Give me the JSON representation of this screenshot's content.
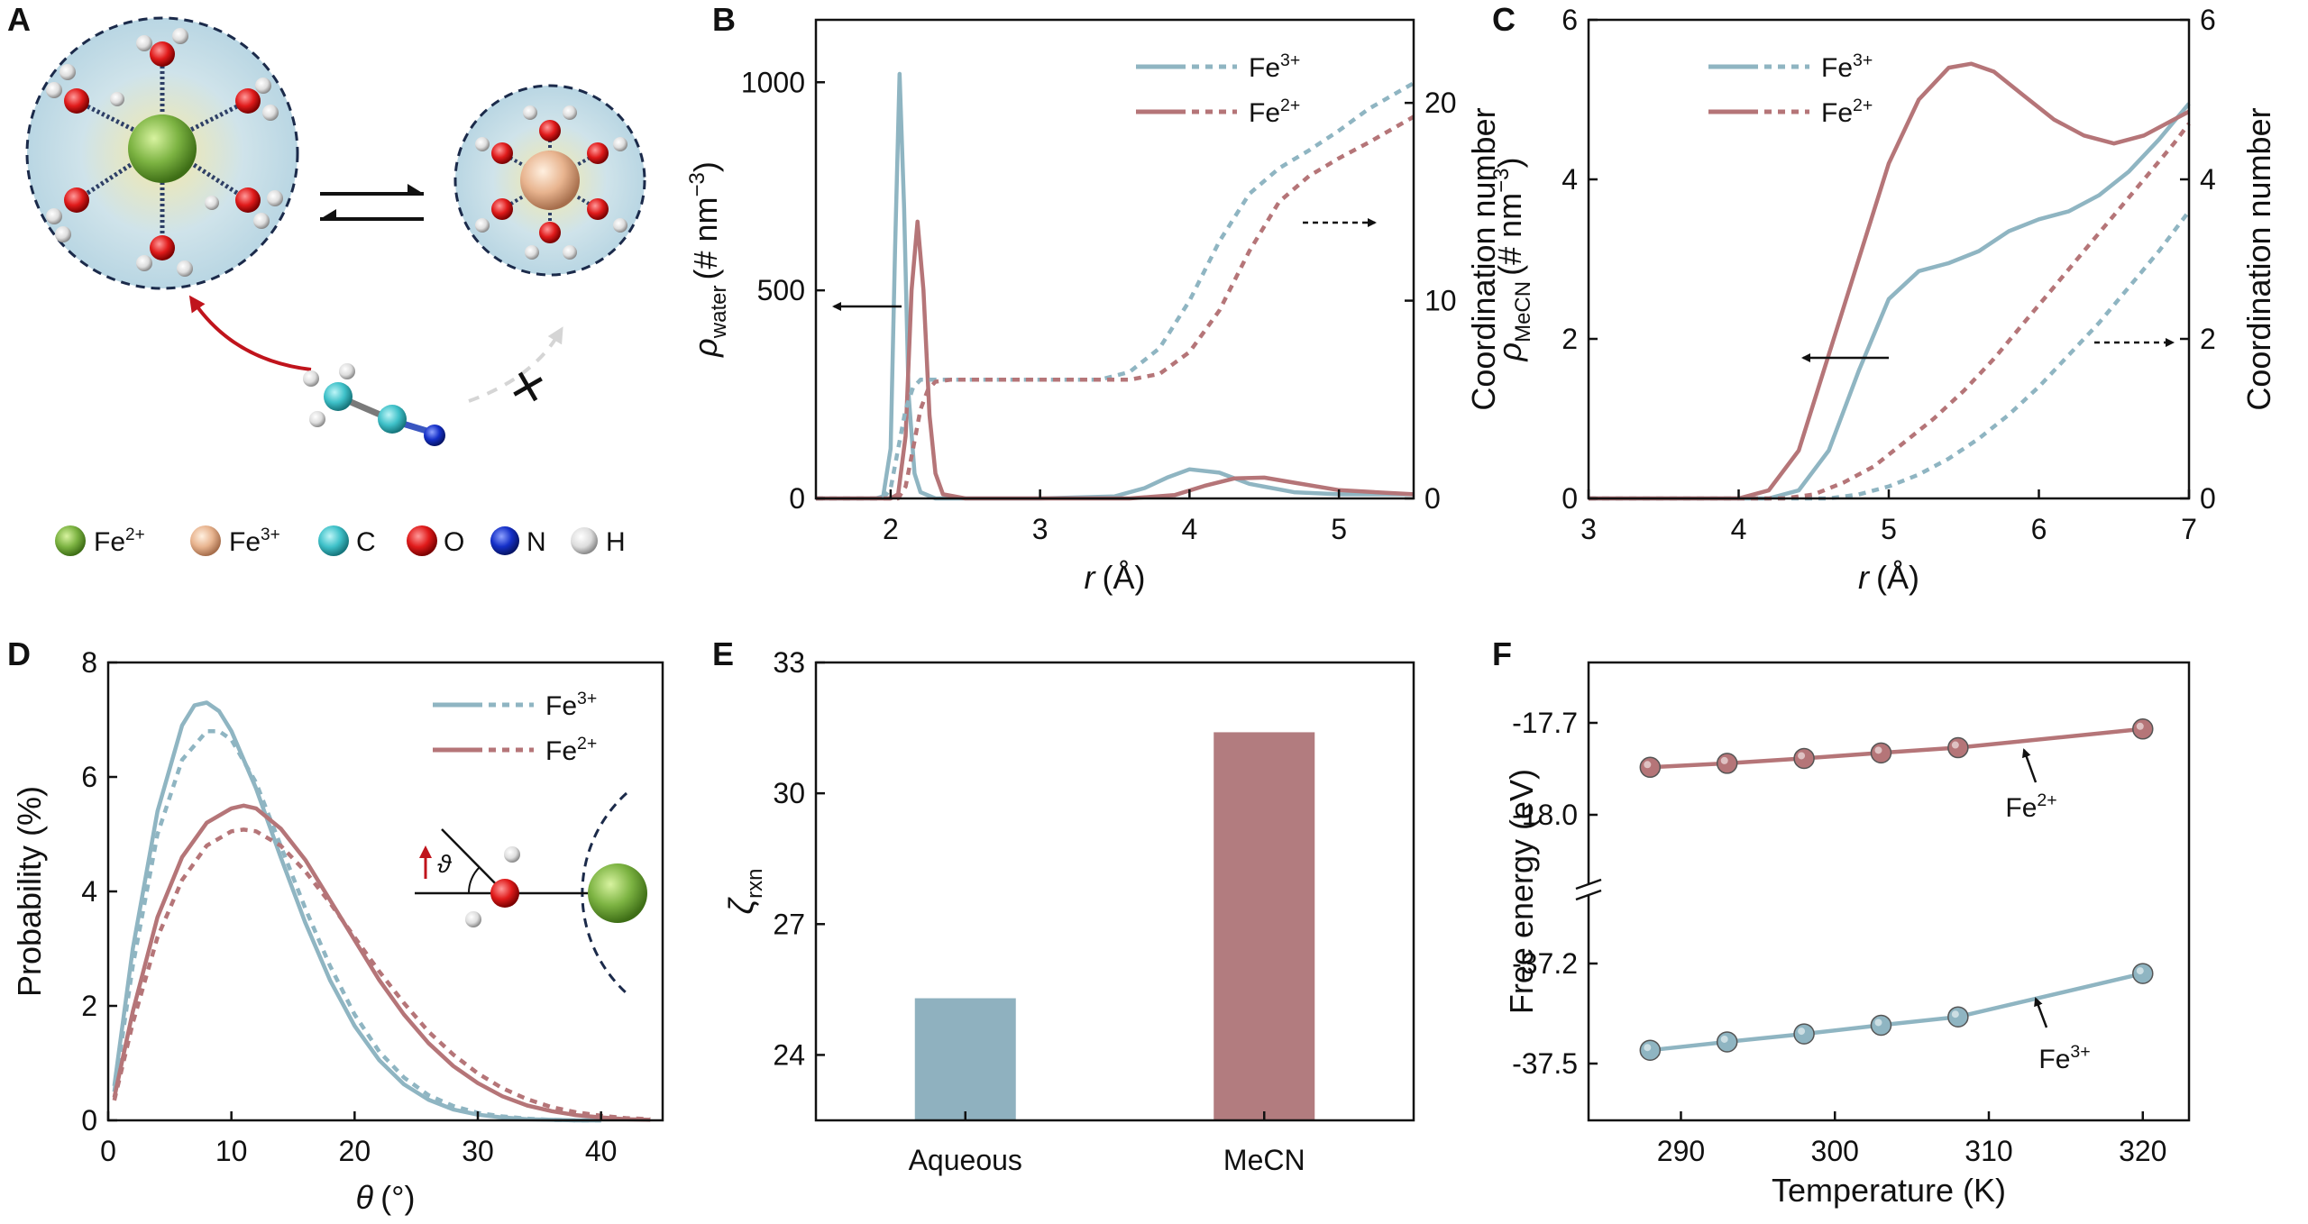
{
  "colors": {
    "blue": "#8FB5C2",
    "red": "#B57578",
    "bar_blue": "#8FB1BF",
    "bar_red": "#B27C7F",
    "dark": "#111111",
    "dashed": "#1b2a4a"
  },
  "panel_letters": {
    "A": "A",
    "B": "B",
    "C": "C",
    "D": "D",
    "E": "E",
    "F": "F"
  },
  "schematic": {
    "legend": [
      {
        "label": "Fe2+",
        "base": "Fe",
        "sup": "2+",
        "color": "#7CB342"
      },
      {
        "label": "Fe3+",
        "base": "Fe",
        "sup": "3+",
        "color": "#E8B48F"
      },
      {
        "label": "C",
        "base": "C",
        "sup": "",
        "color": "#3FC1C9"
      },
      {
        "label": "O",
        "base": "O",
        "sup": "",
        "color": "#E01B1B"
      },
      {
        "label": "N",
        "base": "N",
        "sup": "",
        "color": "#1530C8"
      },
      {
        "label": "H",
        "base": "H",
        "sup": "",
        "color": "#DDDDDD"
      }
    ]
  },
  "chart_data": [
    {
      "id": "B",
      "type": "line",
      "xlabel_var": "r",
      "xlabel_unit": "(Å)",
      "ylabel_left_var": "ρ",
      "ylabel_left_sub": "water",
      "ylabel_left_unit": "(# nm",
      "ylabel_left_sup": "−3",
      "ylabel_left_close": ")",
      "ylabel_right": "Coordination number",
      "xlim": [
        1.5,
        5.5
      ],
      "ylim_left": [
        0,
        1150
      ],
      "ylim_right": [
        0,
        24.2
      ],
      "xticks": [
        "2",
        "3",
        "4",
        "5"
      ],
      "xtick_values": [
        2,
        3,
        4,
        5
      ],
      "yticks_left": [
        "0",
        "500",
        "1000"
      ],
      "ytick_left_values": [
        0,
        500,
        1000
      ],
      "yticks_right": [
        "0",
        "10",
        "20"
      ],
      "ytick_right_values": [
        0,
        10,
        20
      ],
      "legend": [
        {
          "name": "Fe",
          "sup": "3+",
          "color": "blue"
        },
        {
          "name": "Fe",
          "sup": "2+",
          "color": "red"
        }
      ],
      "series": [
        {
          "name": "Fe3+ ρ_water",
          "axis": "left",
          "style": "solid",
          "color": "blue",
          "x": [
            1.5,
            1.9,
            1.95,
            2.0,
            2.03,
            2.06,
            2.09,
            2.12,
            2.16,
            2.2,
            2.3,
            2.5,
            3.0,
            3.5,
            3.7,
            3.85,
            4.0,
            4.2,
            4.4,
            4.7,
            5.0,
            5.5
          ],
          "y": [
            0,
            0,
            5,
            120,
            600,
            1020,
            700,
            250,
            60,
            15,
            0,
            0,
            0,
            5,
            25,
            50,
            70,
            62,
            35,
            15,
            10,
            10
          ]
        },
        {
          "name": "Fe2+ ρ_water",
          "axis": "left",
          "style": "solid",
          "color": "red",
          "x": [
            1.5,
            2.0,
            2.05,
            2.1,
            2.14,
            2.18,
            2.22,
            2.26,
            2.3,
            2.35,
            2.5,
            3.0,
            3.6,
            3.9,
            4.1,
            4.3,
            4.5,
            4.7,
            5.0,
            5.5
          ],
          "y": [
            0,
            0,
            10,
            150,
            500,
            665,
            500,
            200,
            60,
            10,
            0,
            0,
            0,
            8,
            30,
            48,
            50,
            38,
            20,
            10
          ]
        },
        {
          "name": "Fe3+ CN",
          "axis": "right",
          "style": "dashed",
          "color": "blue",
          "x": [
            1.5,
            1.95,
            2.0,
            2.05,
            2.1,
            2.15,
            2.2,
            2.3,
            2.5,
            3.0,
            3.4,
            3.6,
            3.8,
            4.0,
            4.2,
            4.4,
            4.6,
            4.8,
            5.0,
            5.2,
            5.5
          ],
          "y": [
            0,
            0,
            0.5,
            2.5,
            4.5,
            5.6,
            6.0,
            6.0,
            6.0,
            6.0,
            6.0,
            6.4,
            7.6,
            10.0,
            13.0,
            15.4,
            16.7,
            17.6,
            18.6,
            19.7,
            21.0
          ]
        },
        {
          "name": "Fe2+ CN",
          "axis": "right",
          "style": "dashed",
          "color": "red",
          "x": [
            1.5,
            2.05,
            2.1,
            2.15,
            2.2,
            2.25,
            2.3,
            2.4,
            2.6,
            3.0,
            3.6,
            3.8,
            4.0,
            4.2,
            4.4,
            4.6,
            4.8,
            5.0,
            5.2,
            5.5
          ],
          "y": [
            0,
            0,
            0.6,
            2.5,
            4.5,
            5.5,
            5.9,
            6.0,
            6.0,
            6.0,
            6.0,
            6.3,
            7.4,
            9.5,
            12.5,
            15.0,
            16.3,
            17.2,
            18.0,
            19.3
          ]
        }
      ],
      "annotations": [
        {
          "text": "←",
          "at": "left-arrow"
        },
        {
          "text": "→",
          "at": "right-arrow"
        }
      ]
    },
    {
      "id": "C",
      "type": "line",
      "xlabel_var": "r",
      "xlabel_unit": "(Å)",
      "ylabel_left_var": "ρ",
      "ylabel_left_sub": "MeCN",
      "ylabel_left_unit": "(# nm",
      "ylabel_left_sup": "−3",
      "ylabel_left_close": ")",
      "ylabel_right": "Coordination number",
      "xlim": [
        3,
        7
      ],
      "ylim_left": [
        0,
        6
      ],
      "ylim_right": [
        0,
        6
      ],
      "xticks": [
        "3",
        "4",
        "5",
        "6",
        "7"
      ],
      "xtick_values": [
        3,
        4,
        5,
        6,
        7
      ],
      "yticks_left": [
        "0",
        "2",
        "4",
        "6"
      ],
      "ytick_left_values": [
        0,
        2,
        4,
        6
      ],
      "yticks_right": [
        "0",
        "2",
        "4",
        "6"
      ],
      "ytick_right_values": [
        0,
        2,
        4,
        6
      ],
      "legend": [
        {
          "name": "Fe",
          "sup": "3+",
          "color": "blue"
        },
        {
          "name": "Fe",
          "sup": "2+",
          "color": "red"
        }
      ],
      "series": [
        {
          "name": "Fe3+ ρ_MeCN",
          "axis": "left",
          "style": "solid",
          "color": "blue",
          "x": [
            3,
            4.2,
            4.4,
            4.6,
            4.8,
            5.0,
            5.2,
            5.4,
            5.6,
            5.8,
            6.0,
            6.2,
            6.4,
            6.6,
            6.8,
            7.0
          ],
          "y": [
            0,
            0,
            0.1,
            0.6,
            1.6,
            2.5,
            2.85,
            2.95,
            3.1,
            3.35,
            3.5,
            3.6,
            3.8,
            4.1,
            4.5,
            4.95
          ]
        },
        {
          "name": "Fe2+ ρ_MeCN",
          "axis": "left",
          "style": "solid",
          "color": "red",
          "x": [
            3,
            4.0,
            4.2,
            4.4,
            4.6,
            4.8,
            5.0,
            5.2,
            5.4,
            5.55,
            5.7,
            5.9,
            6.1,
            6.3,
            6.5,
            6.7,
            6.9,
            7.0
          ],
          "y": [
            0,
            0,
            0.1,
            0.6,
            1.8,
            3.0,
            4.2,
            5.0,
            5.4,
            5.45,
            5.35,
            5.05,
            4.75,
            4.55,
            4.45,
            4.55,
            4.75,
            4.85
          ]
        },
        {
          "name": "Fe3+ CN",
          "axis": "right",
          "style": "dashed",
          "color": "blue",
          "x": [
            3,
            4.6,
            4.8,
            5.0,
            5.2,
            5.4,
            5.6,
            5.8,
            6.0,
            6.2,
            6.4,
            6.6,
            6.8,
            7.0
          ],
          "y": [
            0,
            0,
            0.05,
            0.15,
            0.3,
            0.5,
            0.75,
            1.05,
            1.4,
            1.8,
            2.2,
            2.65,
            3.1,
            3.6
          ]
        },
        {
          "name": "Fe2+ CN",
          "axis": "right",
          "style": "dashed",
          "color": "red",
          "x": [
            3,
            4.3,
            4.5,
            4.7,
            4.9,
            5.1,
            5.3,
            5.5,
            5.7,
            5.9,
            6.1,
            6.3,
            6.5,
            6.7,
            6.9,
            7.0
          ],
          "y": [
            0,
            0,
            0.05,
            0.2,
            0.4,
            0.7,
            1.0,
            1.35,
            1.75,
            2.2,
            2.65,
            3.1,
            3.55,
            4.0,
            4.45,
            4.7
          ]
        }
      ]
    },
    {
      "id": "D",
      "type": "line",
      "xlabel_var": "θ",
      "xlabel_unit": "(°)",
      "ylabel": "Probability (%)",
      "xlim": [
        0,
        45
      ],
      "ylim": [
        0,
        8
      ],
      "xticks": [
        "0",
        "10",
        "20",
        "30",
        "40"
      ],
      "xtick_values": [
        0,
        10,
        20,
        30,
        40
      ],
      "yticks": [
        "0",
        "2",
        "4",
        "6",
        "8"
      ],
      "ytick_values": [
        0,
        2,
        4,
        6,
        8
      ],
      "legend": [
        {
          "name": "Fe",
          "sup": "3+",
          "color": "blue"
        },
        {
          "name": "Fe",
          "sup": "2+",
          "color": "red"
        }
      ],
      "inset_symbol": "ϑ",
      "series": [
        {
          "name": "Fe3+ solid",
          "style": "solid",
          "color": "blue",
          "x": [
            0.5,
            2,
            4,
            6,
            7,
            8,
            9,
            10,
            12,
            14,
            16,
            18,
            20,
            22,
            24,
            26,
            28,
            30,
            32,
            34,
            36,
            38,
            40
          ],
          "y": [
            0.6,
            3.0,
            5.4,
            6.9,
            7.25,
            7.3,
            7.15,
            6.8,
            5.8,
            4.6,
            3.45,
            2.45,
            1.65,
            1.05,
            0.63,
            0.36,
            0.19,
            0.1,
            0.05,
            0.02,
            0.01,
            0,
            0
          ]
        },
        {
          "name": "Fe3+ dashed",
          "style": "dashed",
          "color": "blue",
          "x": [
            0.5,
            2,
            4,
            6,
            8,
            9,
            10,
            12,
            14,
            16,
            18,
            20,
            22,
            24,
            26,
            28,
            30,
            32,
            34,
            36,
            38,
            40
          ],
          "y": [
            0.5,
            2.7,
            5.0,
            6.3,
            6.8,
            6.8,
            6.65,
            5.9,
            4.8,
            3.7,
            2.7,
            1.85,
            1.2,
            0.75,
            0.44,
            0.25,
            0.13,
            0.07,
            0.03,
            0.01,
            0,
            0
          ]
        },
        {
          "name": "Fe2+ solid",
          "style": "solid",
          "color": "red",
          "x": [
            0.5,
            2,
            4,
            6,
            8,
            10,
            11,
            12,
            14,
            16,
            18,
            20,
            22,
            24,
            26,
            28,
            30,
            32,
            34,
            36,
            38,
            40,
            42,
            44
          ],
          "y": [
            0.4,
            1.9,
            3.55,
            4.6,
            5.2,
            5.45,
            5.5,
            5.45,
            5.1,
            4.55,
            3.85,
            3.15,
            2.45,
            1.85,
            1.35,
            0.95,
            0.65,
            0.42,
            0.26,
            0.16,
            0.09,
            0.05,
            0.02,
            0.01
          ]
        },
        {
          "name": "Fe2+ dashed",
          "style": "dashed",
          "color": "red",
          "x": [
            0.5,
            2,
            4,
            6,
            8,
            10,
            11,
            12,
            14,
            16,
            18,
            20,
            22,
            24,
            26,
            28,
            30,
            32,
            34,
            36,
            38,
            40,
            42,
            44
          ],
          "y": [
            0.35,
            1.7,
            3.2,
            4.2,
            4.8,
            5.05,
            5.08,
            5.05,
            4.8,
            4.35,
            3.8,
            3.2,
            2.6,
            2.05,
            1.55,
            1.15,
            0.82,
            0.56,
            0.37,
            0.23,
            0.14,
            0.08,
            0.04,
            0.02
          ]
        }
      ]
    },
    {
      "id": "E",
      "type": "bar",
      "ylabel_var": "ζ",
      "ylabel_sub": "rxn",
      "categories": [
        "Aqueous",
        "MeCN"
      ],
      "values": [
        25.3,
        31.4
      ],
      "colors": [
        "bar_blue",
        "bar_red"
      ],
      "ylim": [
        22.5,
        33
      ],
      "yticks": [
        "24",
        "27",
        "30",
        "33"
      ],
      "ytick_values": [
        24,
        27,
        30,
        33
      ]
    },
    {
      "id": "F",
      "type": "line",
      "xlabel": "Temperature (K)",
      "ylabel": "Free energy (eV)",
      "xlim": [
        284,
        323
      ],
      "xticks": [
        "290",
        "300",
        "310",
        "320"
      ],
      "xtick_values": [
        290,
        300,
        310,
        320
      ],
      "yticks_top": [
        "-17.7",
        "-18.0"
      ],
      "ytick_top_values": [
        -17.7,
        -18.0
      ],
      "yticks_bottom": [
        "-37.2",
        "-37.5"
      ],
      "ytick_bottom_values": [
        -37.2,
        -37.5
      ],
      "series": [
        {
          "name": "Fe2+",
          "label_base": "Fe",
          "label_sup": "2+",
          "color": "red",
          "segment": "top",
          "x": [
            288,
            293,
            298,
            303,
            308,
            320
          ],
          "y": [
            -17.845,
            -17.832,
            -17.816,
            -17.798,
            -17.781,
            -17.72
          ]
        },
        {
          "name": "Fe3+",
          "label_base": "Fe",
          "label_sup": "3+",
          "color": "blue",
          "segment": "bottom",
          "x": [
            288,
            293,
            298,
            303,
            308,
            320
          ],
          "y": [
            -37.46,
            -37.435,
            -37.411,
            -37.385,
            -37.36,
            -37.23
          ]
        }
      ]
    }
  ]
}
